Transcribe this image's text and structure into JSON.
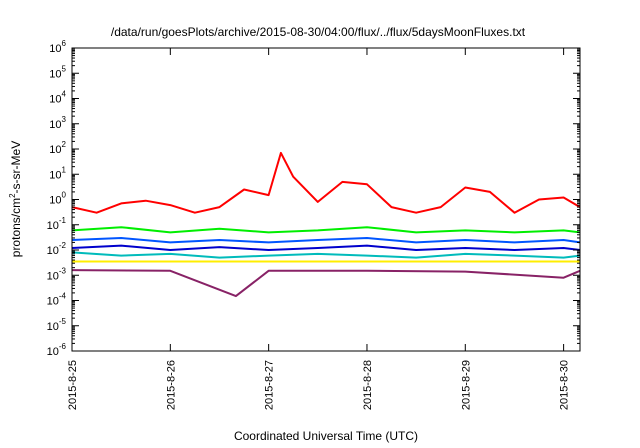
{
  "chart_data": {
    "type": "line",
    "title": "/data/run/goesPlots/archive/2015-08-30/04:00/flux/../flux/5daysMoonFluxes.txt",
    "xlabel": "Coordinated Universal Time (UTC)",
    "ylabel_parts": [
      "protons/cm",
      "2",
      "-s-sr-MeV"
    ],
    "y_scale": "log",
    "ylim": [
      1e-06,
      1000000.0
    ],
    "y_ticks": [
      {
        "value": 1e-06,
        "base": "10",
        "exp": "-6"
      },
      {
        "value": 1e-05,
        "base": "10",
        "exp": "-5"
      },
      {
        "value": 0.0001,
        "base": "10",
        "exp": "-4"
      },
      {
        "value": 0.001,
        "base": "10",
        "exp": "-3"
      },
      {
        "value": 0.01,
        "base": "10",
        "exp": "-2"
      },
      {
        "value": 0.1,
        "base": "10",
        "exp": "-1"
      },
      {
        "value": 1,
        "base": "10",
        "exp": "0"
      },
      {
        "value": 10.0,
        "base": "10",
        "exp": "1"
      },
      {
        "value": 100.0,
        "base": "10",
        "exp": "2"
      },
      {
        "value": 1000.0,
        "base": "10",
        "exp": "3"
      },
      {
        "value": 10000.0,
        "base": "10",
        "exp": "4"
      },
      {
        "value": 100000.0,
        "base": "10",
        "exp": "5"
      },
      {
        "value": 1000000.0,
        "base": "10",
        "exp": "6"
      }
    ],
    "x_ticks": [
      "2015-8-25",
      "2015-8-26",
      "2015-8-27",
      "2015-8-28",
      "2015-8-29",
      "2015-8-30"
    ],
    "xlim": [
      "2015-08-25 00:00",
      "2015-08-30 04:00"
    ],
    "grid": false,
    "legend": "none",
    "series": [
      {
        "color": "#ff0000",
        "x": [
          "2015-08-25 00:00",
          "2015-08-25 06:00",
          "2015-08-25 12:00",
          "2015-08-25 18:00",
          "2015-08-26 00:00",
          "2015-08-26 06:00",
          "2015-08-26 12:00",
          "2015-08-26 18:00",
          "2015-08-27 00:00",
          "2015-08-27 03:00",
          "2015-08-27 06:00",
          "2015-08-27 12:00",
          "2015-08-27 18:00",
          "2015-08-28 00:00",
          "2015-08-28 06:00",
          "2015-08-28 12:00",
          "2015-08-28 18:00",
          "2015-08-29 00:00",
          "2015-08-29 06:00",
          "2015-08-29 12:00",
          "2015-08-29 18:00",
          "2015-08-30 00:00",
          "2015-08-30 04:00"
        ],
        "y": [
          0.5,
          0.3,
          0.7,
          0.9,
          0.6,
          0.3,
          0.5,
          2.5,
          1.5,
          70,
          8,
          0.8,
          5,
          4,
          0.5,
          0.3,
          0.5,
          3,
          2,
          0.3,
          1.0,
          1.2,
          0.5
        ]
      },
      {
        "color": "#00ee00",
        "x": [
          "2015-08-25 00:00",
          "2015-08-25 12:00",
          "2015-08-26 00:00",
          "2015-08-26 12:00",
          "2015-08-27 00:00",
          "2015-08-27 12:00",
          "2015-08-28 00:00",
          "2015-08-28 12:00",
          "2015-08-29 00:00",
          "2015-08-29 12:00",
          "2015-08-30 00:00",
          "2015-08-30 04:00"
        ],
        "y": [
          0.06,
          0.08,
          0.05,
          0.07,
          0.05,
          0.06,
          0.08,
          0.05,
          0.06,
          0.05,
          0.06,
          0.05
        ]
      },
      {
        "color": "#0055ff",
        "x": [
          "2015-08-25 00:00",
          "2015-08-25 12:00",
          "2015-08-26 00:00",
          "2015-08-26 12:00",
          "2015-08-27 00:00",
          "2015-08-27 12:00",
          "2015-08-28 00:00",
          "2015-08-28 12:00",
          "2015-08-29 00:00",
          "2015-08-29 12:00",
          "2015-08-30 00:00",
          "2015-08-30 04:00"
        ],
        "y": [
          0.025,
          0.03,
          0.02,
          0.025,
          0.02,
          0.025,
          0.03,
          0.02,
          0.025,
          0.02,
          0.025,
          0.02
        ]
      },
      {
        "color": "#0000cc",
        "x": [
          "2015-08-25 00:00",
          "2015-08-25 12:00",
          "2015-08-26 00:00",
          "2015-08-26 12:00",
          "2015-08-27 00:00",
          "2015-08-27 12:00",
          "2015-08-28 00:00",
          "2015-08-28 12:00",
          "2015-08-29 00:00",
          "2015-08-29 12:00",
          "2015-08-30 00:00",
          "2015-08-30 04:00"
        ],
        "y": [
          0.012,
          0.015,
          0.01,
          0.013,
          0.01,
          0.012,
          0.015,
          0.01,
          0.012,
          0.01,
          0.012,
          0.01
        ]
      },
      {
        "color": "#00bbbb",
        "x": [
          "2015-08-25 00:00",
          "2015-08-25 12:00",
          "2015-08-26 00:00",
          "2015-08-26 12:00",
          "2015-08-27 00:00",
          "2015-08-27 12:00",
          "2015-08-28 00:00",
          "2015-08-28 12:00",
          "2015-08-29 00:00",
          "2015-08-29 12:00",
          "2015-08-30 00:00",
          "2015-08-30 04:00"
        ],
        "y": [
          0.008,
          0.006,
          0.007,
          0.005,
          0.006,
          0.007,
          0.006,
          0.005,
          0.007,
          0.006,
          0.005,
          0.006
        ]
      },
      {
        "color": "#ffee00",
        "x": [
          "2015-08-25 00:00",
          "2015-08-26 00:00",
          "2015-08-27 00:00",
          "2015-08-28 00:00",
          "2015-08-29 00:00",
          "2015-08-30 00:00",
          "2015-08-30 04:00"
        ],
        "y": [
          0.0035,
          0.0035,
          0.0035,
          0.0035,
          0.0035,
          0.0035,
          0.0035
        ]
      },
      {
        "color": "#882266",
        "x": [
          "2015-08-25 00:00",
          "2015-08-26 00:00",
          "2015-08-26 16:00",
          "2015-08-27 00:00",
          "2015-08-28 00:00",
          "2015-08-29 00:00",
          "2015-08-30 00:00",
          "2015-08-30 04:00"
        ],
        "y": [
          0.0016,
          0.0015,
          0.00015,
          0.0015,
          0.0015,
          0.0014,
          0.0008,
          0.0015
        ]
      }
    ]
  }
}
